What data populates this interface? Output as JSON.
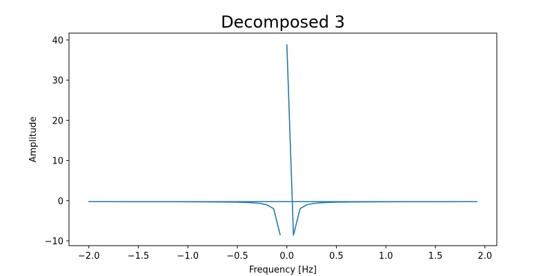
{
  "chart_data": {
    "type": "line",
    "title": "Decomposed 3",
    "xlabel": "Frequency [Hz]",
    "ylabel": "Amplitude",
    "xlim": [
      -2.2,
      2.12
    ],
    "ylim": [
      -11.2,
      41.7
    ],
    "xticks": [
      -2.0,
      -1.5,
      -1.0,
      -0.5,
      0.0,
      0.5,
      1.0,
      1.5,
      2.0
    ],
    "xtick_labels": [
      "−2.0",
      "−1.5",
      "−1.0",
      "−0.5",
      "0.0",
      "0.5",
      "1.0",
      "1.5",
      "2.0"
    ],
    "yticks": [
      -10,
      0,
      10,
      20,
      30,
      40
    ],
    "ytick_labels": [
      "−10",
      "0",
      "10",
      "20",
      "30",
      "40"
    ],
    "grid": false,
    "color": "#1f77b4",
    "series": [
      {
        "x": [
          0.0,
          0.0667,
          0.1333,
          0.2,
          0.2667,
          0.3333,
          0.4,
          0.5,
          0.6,
          0.8,
          1.0,
          1.2,
          1.4,
          1.6,
          1.8,
          1.92,
          -2.0,
          -1.8,
          -1.6,
          -1.4,
          -1.2,
          -1.0,
          -0.8,
          -0.6,
          -0.5,
          -0.4,
          -0.3333,
          -0.2667,
          -0.2,
          -0.1333,
          -0.0667
        ],
        "y": [
          38.9,
          -8.6,
          -2.0,
          -1.05,
          -0.7,
          -0.55,
          -0.45,
          -0.38,
          -0.34,
          -0.3,
          -0.28,
          -0.27,
          -0.26,
          -0.26,
          -0.25,
          -0.25,
          -0.25,
          -0.25,
          -0.26,
          -0.26,
          -0.27,
          -0.28,
          -0.3,
          -0.34,
          -0.38,
          -0.45,
          -0.55,
          -0.7,
          -1.05,
          -2.0,
          -8.6
        ]
      }
    ]
  }
}
